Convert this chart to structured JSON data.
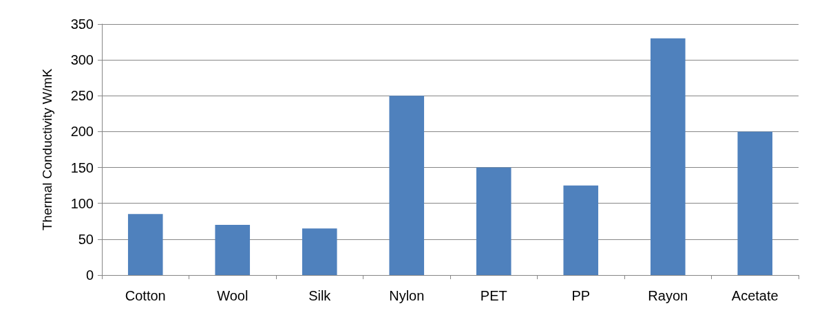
{
  "chart_data": {
    "type": "bar",
    "ylabel": "Thermal Conductivity W/mK",
    "categories": [
      "Cotton",
      "Wool",
      "Silk",
      "Nylon",
      "PET",
      "PP",
      "Rayon",
      "Acetate"
    ],
    "values": [
      85,
      70,
      65,
      250,
      150,
      125,
      330,
      200
    ],
    "color": "#4f81bd",
    "ylim": [
      0,
      350
    ],
    "yticks": [
      0,
      50,
      100,
      150,
      200,
      250,
      300,
      350
    ],
    "grid": "y"
  }
}
